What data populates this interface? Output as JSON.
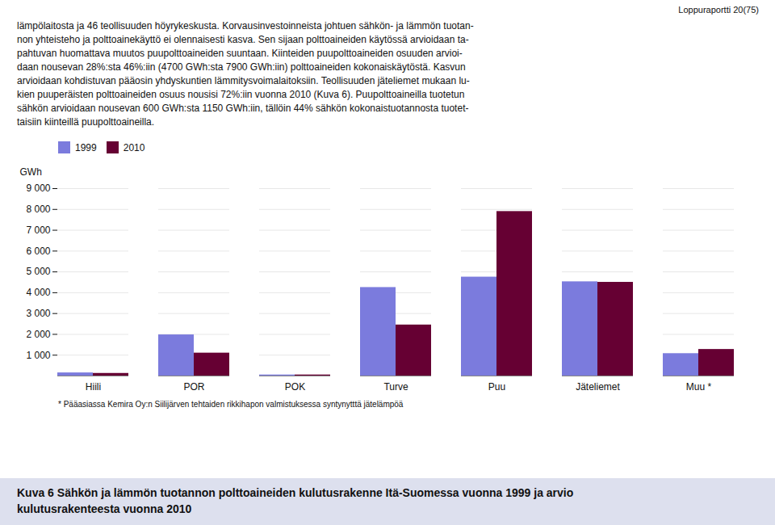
{
  "chart_data": {
    "type": "bar",
    "header": "Loppuraportti 20(75)",
    "paragraph": [
      "lämpölaitosta ja 46 teollisuuden höyrykeskusta. Korvausinvestoinneista johtuen sähkön- ja lämmön tuotan-",
      "non yhteisteho ja polttoainekäyttö ei olennaisesti kasva. Sen sijaan polttoaineiden käytössä arvioidaan ta-",
      "pahtuvan huomattava muutos puupolttoaineiden suuntaan. Kiinteiden puupolttoaineiden osuuden arvioi-",
      "daan nousevan 28%:sta 46%:iin (4700 GWh:sta 7900 GWh:iin) polttoaineiden kokonaiskäytöstä. Kasvun",
      "arvioidaan kohdistuvan pääosin yhdyskuntien lämmitysvoimalaitoksiin. Teollisuuden jäteliemet mukaan lu-",
      "kien puuperäisten polttoaineiden osuus nousisi 72%:iin vuonna 2010 (Kuva 6). Puupolttoaineilla tuotetun",
      "sähkön arvioidaan nousevan 600 GWh:sta 1150 GWh:iin, tällöin 44% sähkön kokonaistuotannosta tuotet-",
      "taisiin kiinteillä puupolttoaineilla."
    ],
    "footnote": "* Pääasiassa Kemira Oy:n Siilijärven tehtaiden rikkihapon valmistuksessa syntynytttä jätelämpöä",
    "caption": [
      "Kuva 6 Sähkön ja lämmön tuotannon polttoaineiden kulutusrakenne Itä-Suomessa vuonna 1999 ja arvio",
      "kulutusrakenteesta vuonna 2010"
    ],
    "ylabel": "GWh",
    "categories": [
      "Hiili",
      "POR",
      "POK",
      "Turve",
      "Puu",
      "Jäteliemet",
      "Muu *"
    ],
    "series": [
      {
        "name": "1999",
        "color": "#7b7bdd",
        "values": [
          150,
          1975,
          50,
          4250,
          4750,
          4525,
          1075
        ]
      },
      {
        "name": "2010",
        "color": "#660033",
        "values": [
          125,
          1100,
          50,
          2450,
          7900,
          4500,
          1275
        ]
      }
    ],
    "ylim": [
      0,
      9000
    ],
    "yticks": [
      {
        "value": 1000,
        "label": "1 000"
      },
      {
        "value": 2000,
        "label": "2 000"
      },
      {
        "value": 3000,
        "label": "3 000"
      },
      {
        "value": 4000,
        "label": "4 000"
      },
      {
        "value": 5000,
        "label": "5 000"
      },
      {
        "value": 6000,
        "label": "6 000"
      },
      {
        "value": 7000,
        "label": "7 000"
      },
      {
        "value": 8000,
        "label": "8 000"
      },
      {
        "value": 9000,
        "label": "9 000"
      }
    ],
    "grid": true,
    "legend": "upper left"
  }
}
